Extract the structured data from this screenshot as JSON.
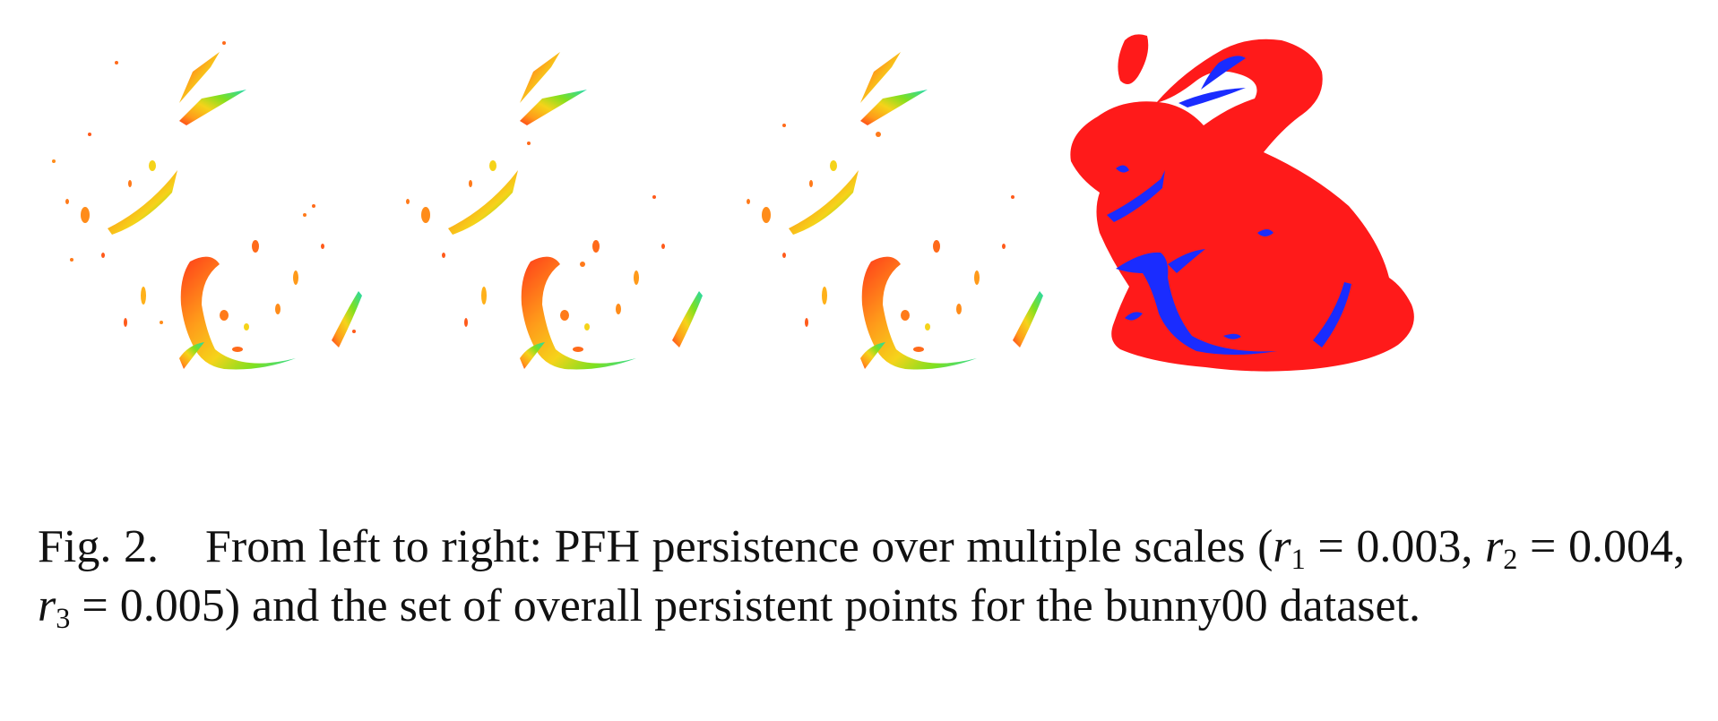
{
  "figure": {
    "panels": [
      {
        "id": "scale-r1",
        "colors": [
          "#ff3b1a",
          "#ff8c1a",
          "#f5d31a",
          "#7fe01f",
          "#20d9b0"
        ]
      },
      {
        "id": "scale-r2",
        "colors": [
          "#ff3b1a",
          "#ff8c1a",
          "#f5d31a",
          "#7fe01f",
          "#20d9b0"
        ]
      },
      {
        "id": "scale-r3",
        "colors": [
          "#ff3b1a",
          "#ff8c1a",
          "#f5d31a",
          "#7fe01f",
          "#20d9b0"
        ]
      },
      {
        "id": "overall-persistent",
        "colors": [
          "#ff1a1a",
          "#1a2cff"
        ]
      }
    ]
  },
  "caption": {
    "label": "Fig. 2.",
    "t1": "From left to right: PFH persistence over multiple scales (",
    "r": "r",
    "s1": "1",
    "v1": " = 0.003, ",
    "s2": "2",
    "v2": " = 0.004, ",
    "s3": "3",
    "v3": " = 0.005) and the set of overall persistent points for the bunny00 dataset."
  }
}
